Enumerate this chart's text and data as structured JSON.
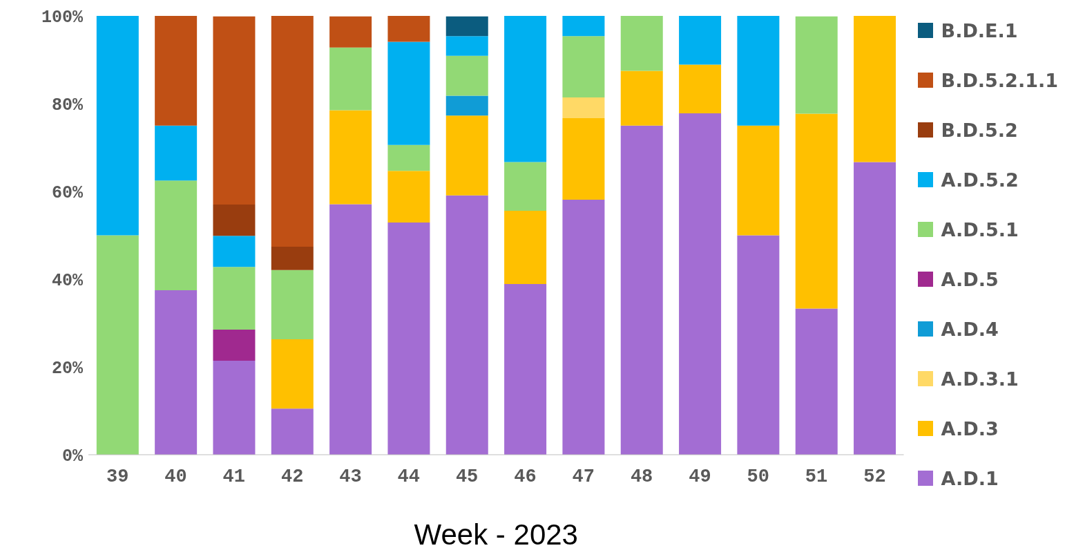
{
  "chart_data": {
    "type": "bar",
    "stacked": true,
    "xlabel": "Week - 2023",
    "categories": [
      "39",
      "40",
      "41",
      "42",
      "43",
      "44",
      "45",
      "46",
      "47",
      "48",
      "49",
      "50",
      "51",
      "52"
    ],
    "ylim": [
      0,
      100
    ],
    "yticks": [
      {
        "value": 0,
        "label": "0%"
      },
      {
        "value": 20,
        "label": "20%"
      },
      {
        "value": 40,
        "label": "40%"
      },
      {
        "value": 60,
        "label": "60%"
      },
      {
        "value": 80,
        "label": "80%"
      },
      {
        "value": 100,
        "label": "100%"
      }
    ],
    "legend": "right",
    "grid": false,
    "series": [
      {
        "name": "A.D.1",
        "color": "#a36dd3",
        "values": [
          null,
          37.5,
          21.4,
          10.5,
          57.1,
          52.9,
          59.1,
          38.9,
          58.1,
          75,
          77.8,
          50,
          33.3,
          66.7
        ]
      },
      {
        "name": "A.D.3",
        "color": "#ffc000",
        "values": [
          null,
          null,
          null,
          15.8,
          21.4,
          11.8,
          18.2,
          16.7,
          18.6,
          12.5,
          11.1,
          25,
          44.4,
          33.3
        ]
      },
      {
        "name": "A.D.3.1",
        "color": "#ffd966",
        "values": [
          null,
          null,
          null,
          null,
          null,
          null,
          null,
          null,
          4.7,
          null,
          null,
          null,
          null,
          null
        ]
      },
      {
        "name": "A.D.4",
        "color": "#109cd6",
        "values": [
          null,
          null,
          null,
          null,
          null,
          null,
          4.5,
          null,
          null,
          null,
          null,
          null,
          null,
          null
        ]
      },
      {
        "name": "A.D.5",
        "color": "#a0298f",
        "values": [
          null,
          null,
          7.1,
          null,
          null,
          null,
          null,
          null,
          null,
          null,
          null,
          null,
          null,
          null
        ]
      },
      {
        "name": "A.D.5.1",
        "color": "#92d975",
        "values": [
          50,
          25,
          14.3,
          15.8,
          14.3,
          5.9,
          9.1,
          11.1,
          14,
          12.5,
          null,
          null,
          22.2,
          null
        ]
      },
      {
        "name": "A.D.5.2",
        "color": "#00b0f0",
        "values": [
          50,
          12.5,
          7.1,
          null,
          null,
          23.5,
          4.5,
          33.3,
          4.7,
          null,
          11.1,
          25,
          null,
          null
        ]
      },
      {
        "name": "B.D.5.2",
        "color": "#993d0f",
        "values": [
          null,
          null,
          7.1,
          5.3,
          null,
          null,
          null,
          null,
          null,
          null,
          null,
          null,
          null,
          null
        ]
      },
      {
        "name": "B.D.5.2.1.1",
        "color": "#c05015",
        "values": [
          null,
          25,
          42.9,
          52.6,
          7.1,
          5.9,
          null,
          null,
          null,
          null,
          null,
          null,
          null,
          null
        ]
      },
      {
        "name": "B.D.E.1",
        "color": "#0b5c7f",
        "values": [
          null,
          null,
          null,
          null,
          null,
          null,
          4.5,
          null,
          null,
          null,
          null,
          null,
          null,
          null
        ]
      }
    ]
  }
}
